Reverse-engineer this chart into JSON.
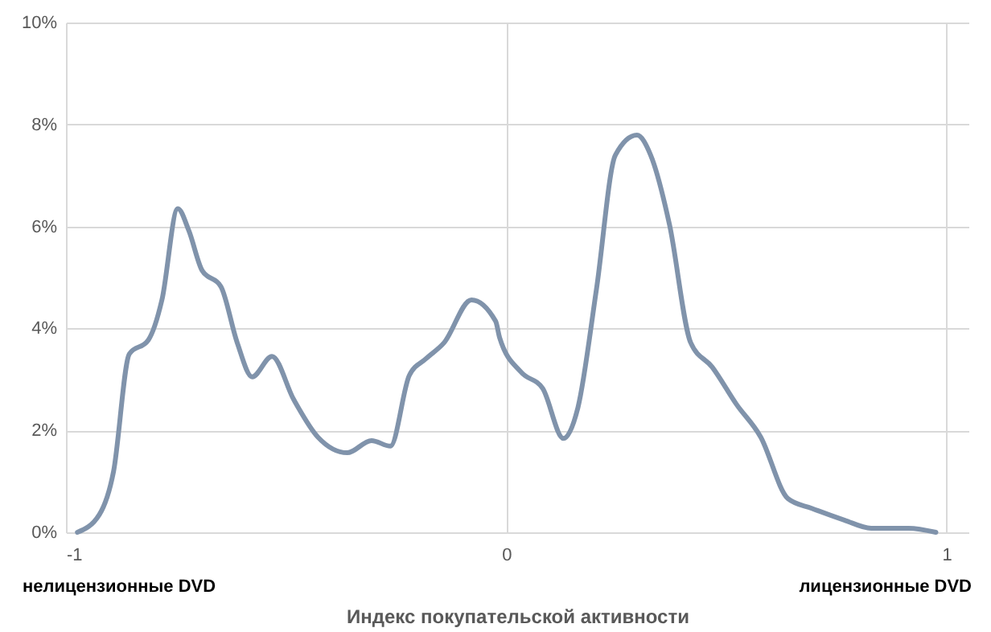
{
  "chart_data": {
    "type": "line",
    "xlabel": "Индекс покупательской активности",
    "annotations": [
      "нелицензионные DVD",
      "лицензионные DVD"
    ],
    "x": [
      -0.974,
      -0.924,
      -0.892,
      -0.856,
      -0.813,
      -0.782,
      -0.746,
      -0.721,
      -0.691,
      -0.648,
      -0.611,
      -0.577,
      -0.532,
      -0.483,
      -0.428,
      -0.361,
      -0.306,
      -0.263,
      -0.22,
      -0.183,
      -0.141,
      -0.079,
      -0.024,
      -0.015,
      0.034,
      0.083,
      0.13,
      0.163,
      0.205,
      0.248,
      0.297,
      0.328,
      0.371,
      0.419,
      0.468,
      0.523,
      0.578,
      0.64,
      0.694,
      0.768,
      0.829,
      0.914,
      0.976
    ],
    "series": [
      {
        "color": "#8093ab",
        "values": [
          0,
          0.35,
          1.19,
          3.5,
          3.77,
          4.56,
          6.35,
          5.92,
          5.14,
          4.82,
          3.72,
          3.05,
          3.45,
          2.61,
          1.87,
          1.56,
          1.8,
          1.69,
          3.08,
          3.4,
          3.72,
          4.56,
          4.14,
          3.82,
          3.14,
          2.82,
          1.84,
          2.45,
          4.77,
          7.4,
          7.79,
          7.4,
          6.03,
          3.72,
          3.24,
          2.51,
          1.87,
          0.66,
          0.47,
          0.24,
          0.08,
          0.08,
          0
        ]
      }
    ],
    "xlim": [
      -1,
      1.05
    ],
    "xticks": [
      -1,
      0,
      1
    ],
    "ylim": [
      0,
      10
    ],
    "yticks": [
      {
        "value": 0,
        "label": "0%"
      },
      {
        "value": 2,
        "label": "2%"
      },
      {
        "value": 4,
        "label": "4%"
      },
      {
        "value": 6,
        "label": "6%"
      },
      {
        "value": 8,
        "label": "8%"
      },
      {
        "value": 10,
        "label": "10%"
      }
    ],
    "grid": true,
    "marker": "none",
    "line_style": "solid"
  }
}
